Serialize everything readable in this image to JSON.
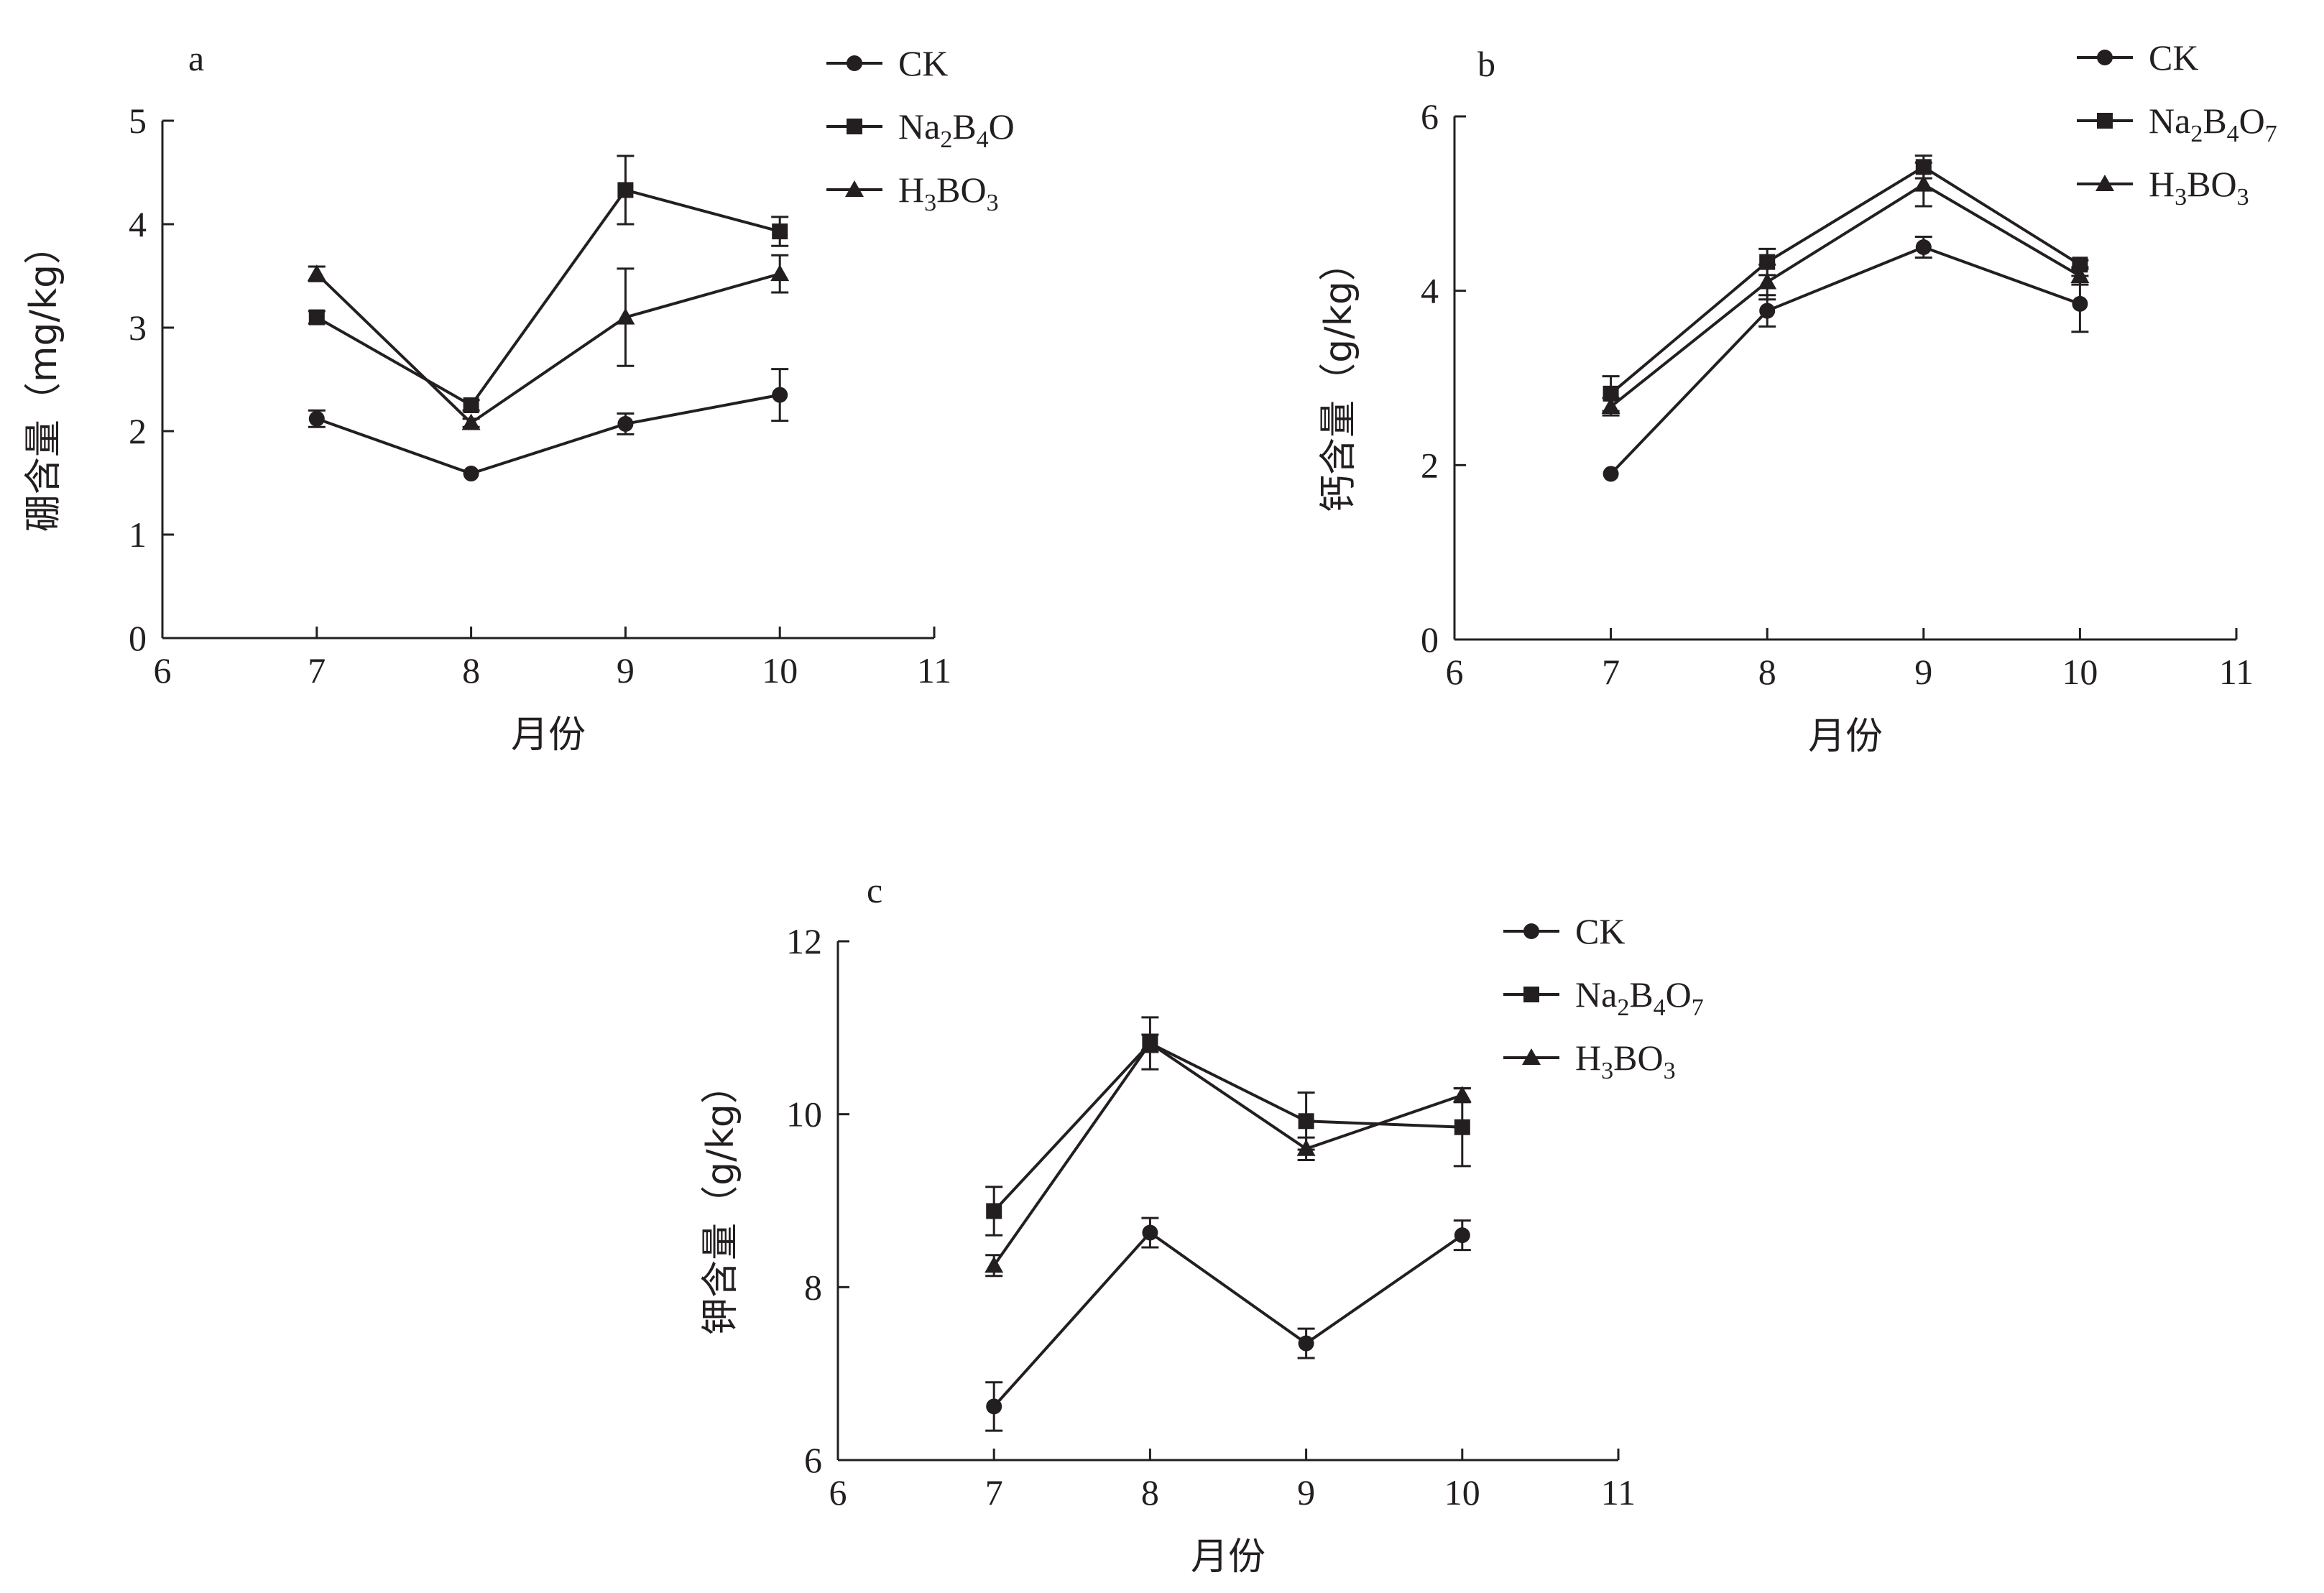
{
  "chart_data": [
    {
      "id": "a",
      "type": "line",
      "panel_label": "a",
      "xlabel": "月份",
      "ylabel": "硼含量（mg/kg）",
      "xlim": [
        6,
        11
      ],
      "ylim": [
        0,
        5
      ],
      "xticks": [
        "6",
        "7",
        "8",
        "9",
        "10",
        "11"
      ],
      "yticks": [
        "0",
        "1",
        "2",
        "3",
        "4",
        "5"
      ],
      "legend_position": "top-right",
      "series": [
        {
          "name": "CK",
          "legend": [
            "CK",
            "",
            ""
          ],
          "marker": "circle",
          "x": [
            7,
            8,
            9,
            10
          ],
          "y": [
            2.12,
            1.59,
            2.07,
            2.35
          ],
          "err": [
            0.08,
            0.0,
            0.1,
            0.25
          ]
        },
        {
          "name": "Na2B4O",
          "legend": [
            "Na",
            "2",
            "B",
            "4",
            "O"
          ],
          "marker": "square",
          "x": [
            7,
            8,
            9,
            10
          ],
          "y": [
            3.1,
            2.25,
            4.33,
            3.93
          ],
          "err": [
            0.06,
            0.05,
            0.33,
            0.14
          ]
        },
        {
          "name": "H3BO3",
          "legend": [
            "H",
            "3",
            "BO",
            "3"
          ],
          "marker": "triangle",
          "x": [
            7,
            8,
            9,
            10
          ],
          "y": [
            3.52,
            2.08,
            3.1,
            3.52
          ],
          "err": [
            0.07,
            0.04,
            0.47,
            0.18
          ]
        }
      ]
    },
    {
      "id": "b",
      "type": "line",
      "panel_label": "b",
      "xlabel": "月份",
      "ylabel": "钙含量（g/kg）",
      "xlim": [
        6,
        11
      ],
      "ylim": [
        0,
        6
      ],
      "xticks": [
        "6",
        "7",
        "8",
        "9",
        "10",
        "11"
      ],
      "yticks": [
        "0",
        "2",
        "4",
        "6"
      ],
      "legend_position": "top-right",
      "series": [
        {
          "name": "CK",
          "legend": [
            "CK",
            "",
            ""
          ],
          "marker": "circle",
          "x": [
            7,
            8,
            9,
            10
          ],
          "y": [
            1.9,
            3.77,
            4.5,
            3.85
          ],
          "err": [
            0.0,
            0.18,
            0.12,
            0.32
          ]
        },
        {
          "name": "Na2B4O7",
          "legend": [
            "Na",
            "2",
            "B",
            "4",
            "O",
            "7"
          ],
          "marker": "square",
          "x": [
            7,
            8,
            9,
            10
          ],
          "y": [
            2.82,
            4.33,
            5.42,
            4.3
          ],
          "err": [
            0.2,
            0.15,
            0.13,
            0.05
          ]
        },
        {
          "name": "H3BO3",
          "legend": [
            "H",
            "3",
            "BO",
            "3"
          ],
          "marker": "triangle",
          "x": [
            7,
            8,
            9,
            10
          ],
          "y": [
            2.67,
            4.1,
            5.22,
            4.17
          ],
          "err": [
            0.1,
            0.2,
            0.25,
            0.1
          ]
        }
      ]
    },
    {
      "id": "c",
      "type": "line",
      "panel_label": "c",
      "xlabel": "月份",
      "ylabel": "钾含量（g/kg）",
      "xlim": [
        6,
        11
      ],
      "ylim": [
        6,
        12
      ],
      "xticks": [
        "6",
        "7",
        "8",
        "9",
        "10",
        "11"
      ],
      "yticks": [
        "6",
        "8",
        "10",
        "12"
      ],
      "legend_position": "top-right",
      "series": [
        {
          "name": "CK",
          "legend": [
            "CK",
            "",
            ""
          ],
          "marker": "circle",
          "x": [
            7,
            8,
            9,
            10
          ],
          "y": [
            6.62,
            8.63,
            7.35,
            8.6
          ],
          "err": [
            0.28,
            0.17,
            0.17,
            0.17
          ]
        },
        {
          "name": "Na2B4O7",
          "legend": [
            "Na",
            "2",
            "B",
            "4",
            "O",
            "7"
          ],
          "marker": "square",
          "x": [
            7,
            8,
            9,
            10
          ],
          "y": [
            8.88,
            10.82,
            9.92,
            9.85
          ],
          "err": [
            0.28,
            0.3,
            0.33,
            0.45
          ]
        },
        {
          "name": "H3BO3",
          "legend": [
            "H",
            "3",
            "BO",
            "3"
          ],
          "marker": "triangle",
          "x": [
            7,
            8,
            9,
            10
          ],
          "y": [
            8.25,
            10.82,
            9.6,
            10.22
          ],
          "err": [
            0.12,
            0.1,
            0.13,
            0.08
          ]
        }
      ]
    }
  ]
}
